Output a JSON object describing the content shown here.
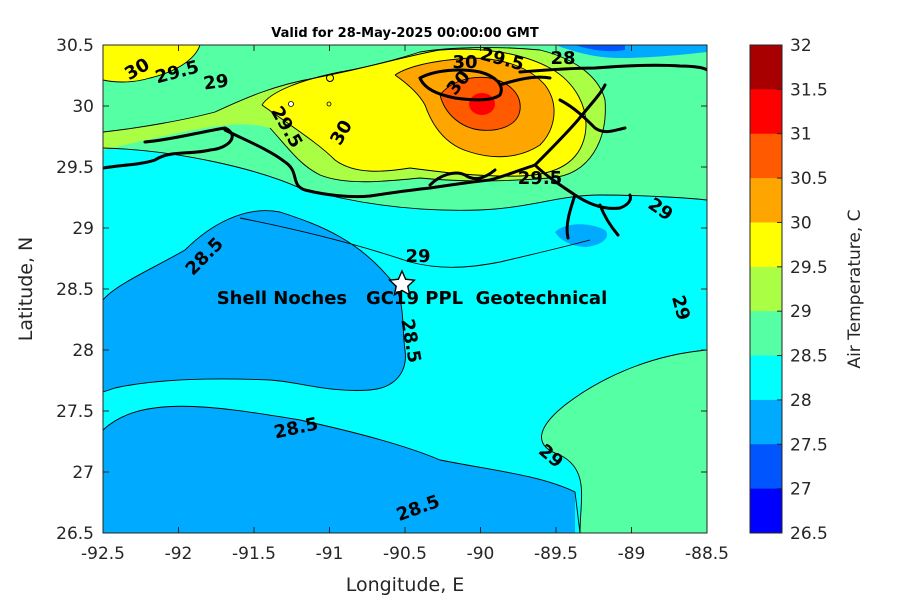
{
  "map": {
    "title": "Valid for 28-May-2025 00:00:00 GMT",
    "xlabel": "Longitude, E",
    "ylabel": "Latitude, N",
    "site_label": "Shell Noches   GC19 PPL  Geotechnical",
    "x_ticks": [
      "-92.5",
      "-92",
      "-91.5",
      "-91",
      "-90.5",
      "-90",
      "-89.5",
      "-89",
      "-88.5"
    ],
    "y_ticks": [
      "30.5",
      "30",
      "29.5",
      "29",
      "28.5",
      "28",
      "27.5",
      "27",
      "26.5"
    ],
    "contour_labels": [
      "30",
      "29.5",
      "29",
      "29.5",
      "30",
      "30",
      "29.5",
      "28",
      "30",
      "29.5",
      "29",
      "28.5",
      "29",
      "28.5",
      "29",
      "28.5",
      "29",
      "28.5"
    ]
  },
  "colorbar": {
    "label": "Air Temperature, C",
    "ticks": [
      "32",
      "31.5",
      "31",
      "30.5",
      "30",
      "29.5",
      "29",
      "28.5",
      "28",
      "27.5",
      "27",
      "26.5"
    ],
    "colors": [
      "#a80000",
      "#ff0000",
      "#ff5a00",
      "#ffa500",
      "#ffff00",
      "#aaff44",
      "#55ffa4",
      "#00ffff",
      "#00aaff",
      "#0055ff",
      "#0000ff",
      "#0000aa"
    ]
  },
  "palette": {
    "t26_5": "#0000aa",
    "t27": "#0000ff",
    "t27_5": "#0055ff",
    "t28": "#00aaff",
    "t28_5": "#00ffff",
    "t29": "#55ffa4",
    "t29_5": "#aaff44",
    "t30": "#ffff00",
    "t30_5": "#ffa500",
    "t31": "#ff5a00",
    "t31_5": "#ff0000",
    "t32": "#a80000"
  }
}
